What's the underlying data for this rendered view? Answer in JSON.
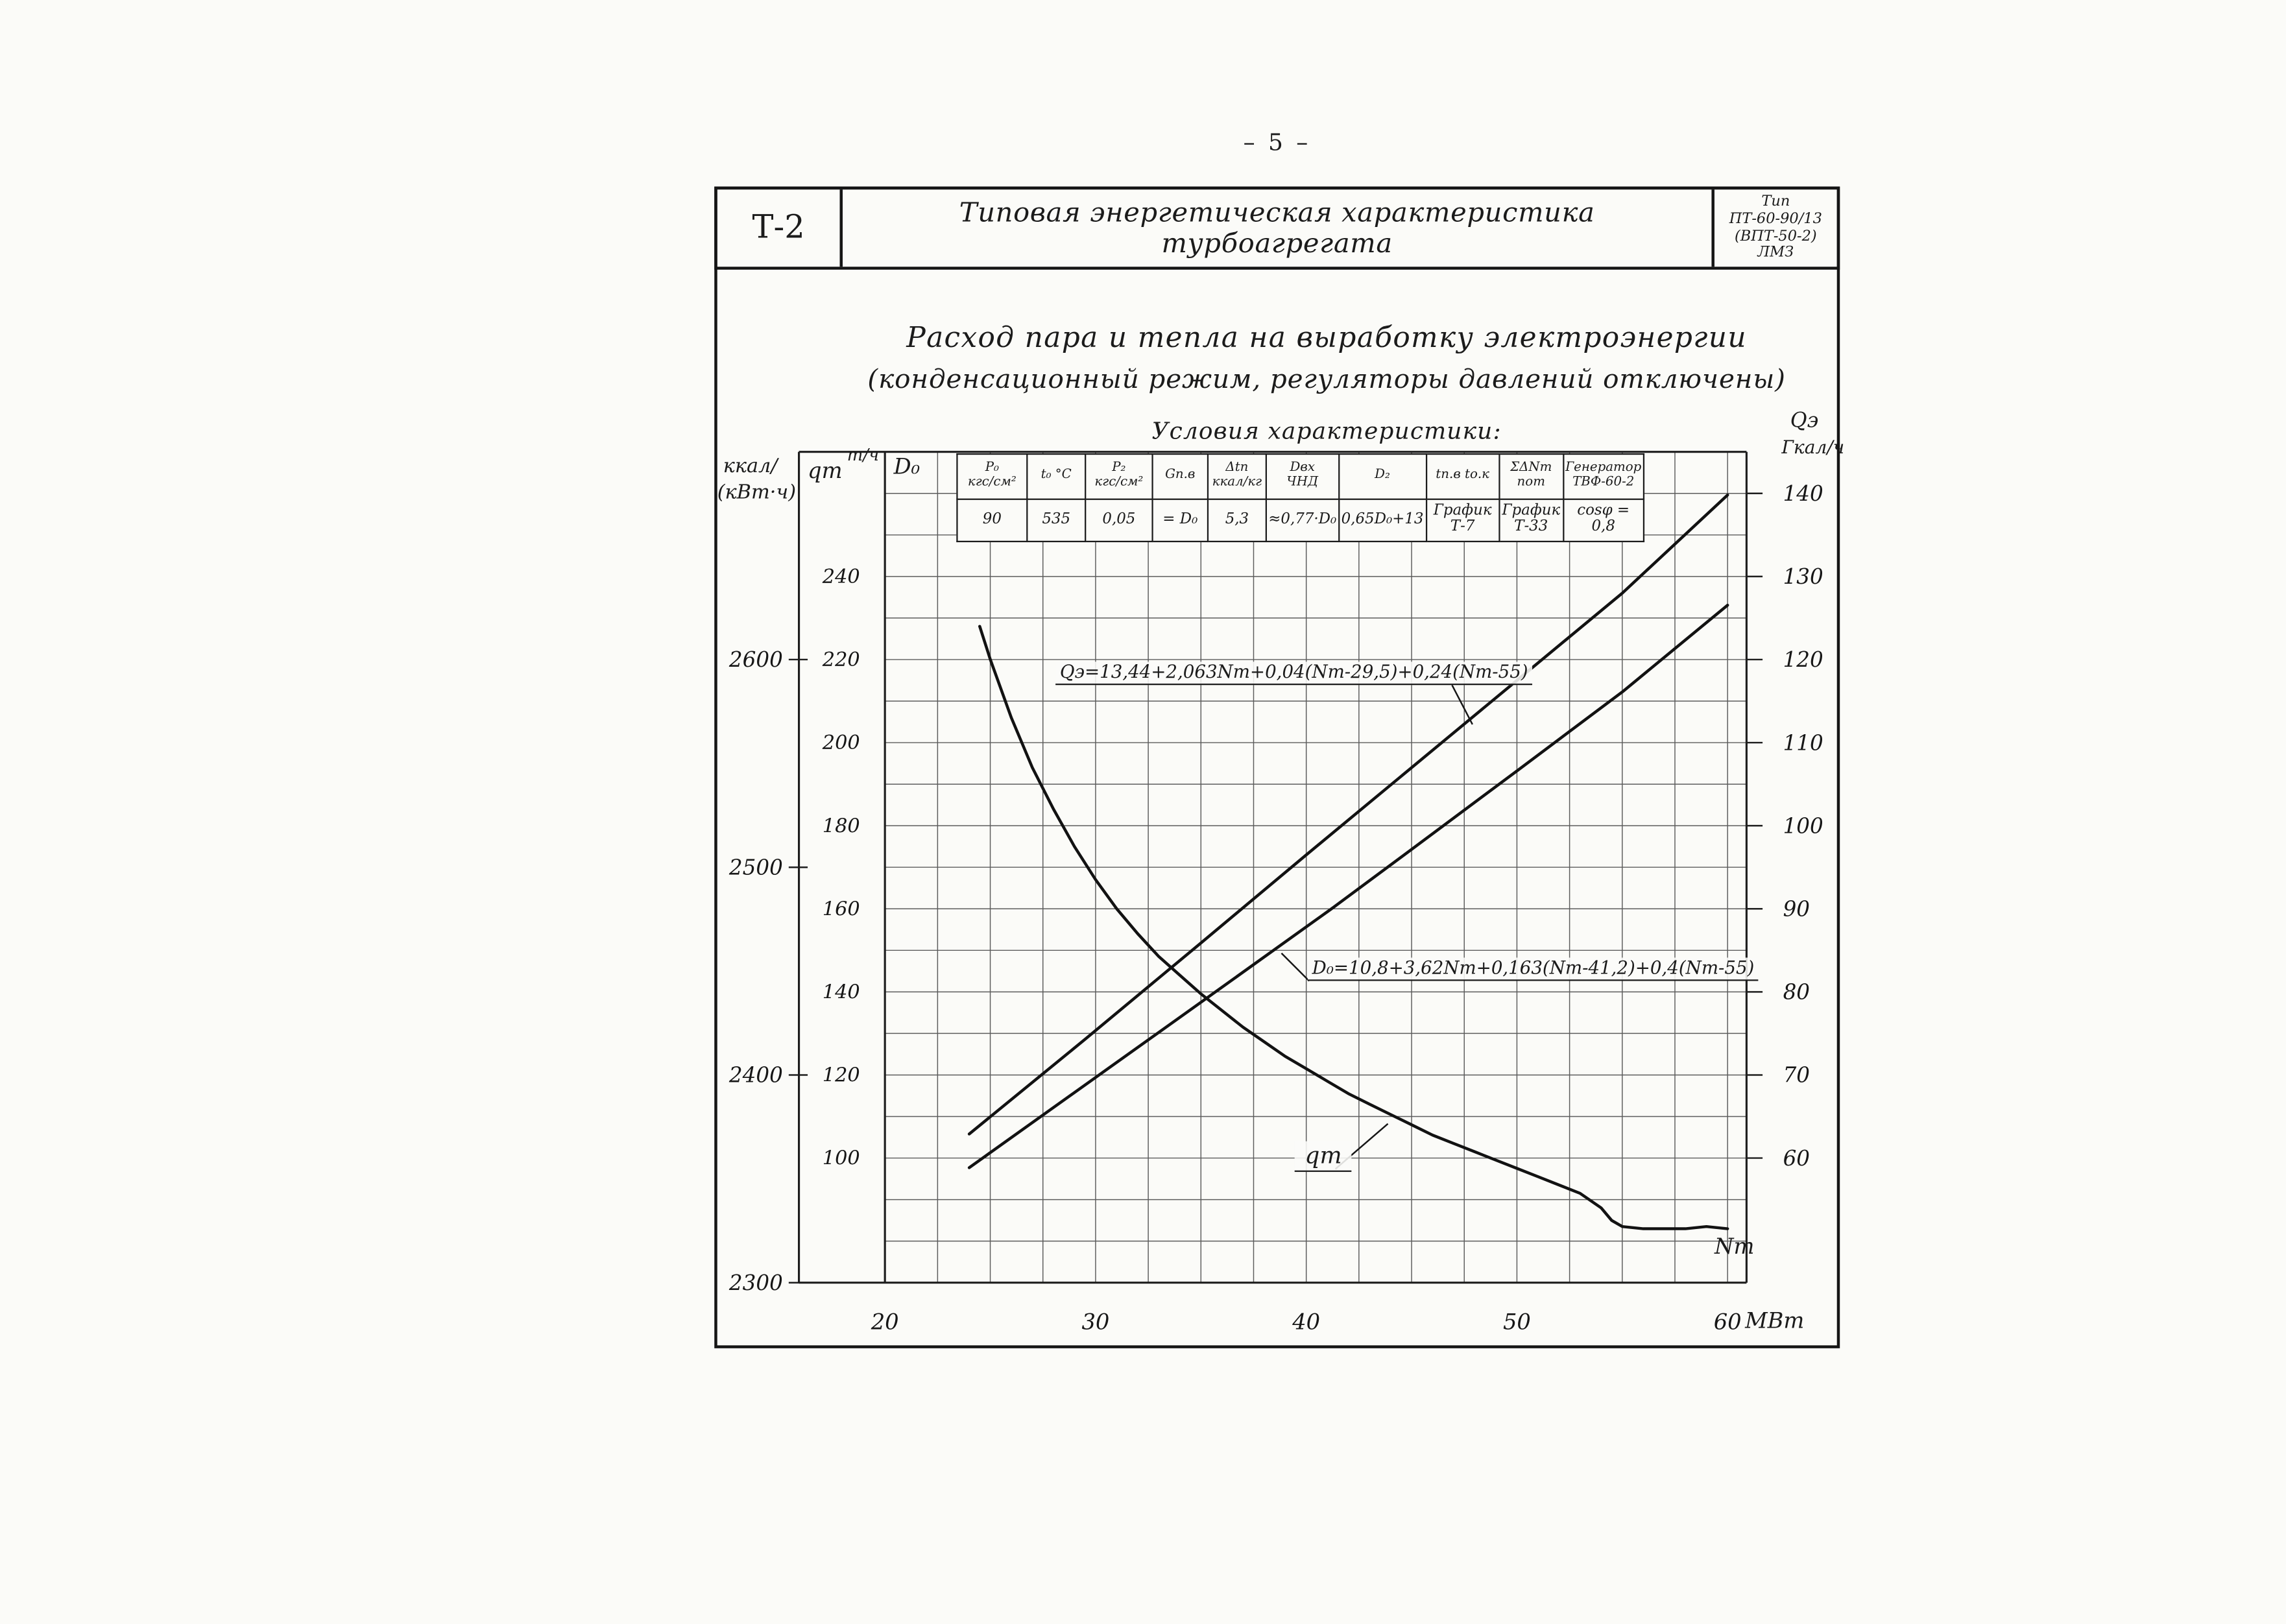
{
  "page": {
    "number": "– 5 –"
  },
  "header": {
    "code": "Т-2",
    "title": "Типовая энергетическая характеристика турбоагрегата",
    "type_lines": [
      "Тип",
      "ПТ-60-90/13",
      "(ВПТ-50-2)",
      "ЛМЗ"
    ]
  },
  "subtitle": {
    "line1": "Расход пара и тепла на выработку электроэнергии",
    "line2": "(конденсационный режим, регуляторы давлений отключены)"
  },
  "conditions": {
    "title": "Условия характеристики:",
    "columns": [
      {
        "header": "P₀\nкгс/см²",
        "value": "90"
      },
      {
        "header": "t₀ °C",
        "value": "535"
      },
      {
        "header": "P₂\nкгс/см²",
        "value": "0,05"
      },
      {
        "header": "Gп.в",
        "value": "= D₀"
      },
      {
        "header": "Δtп\nккал/кг",
        "value": "5,3"
      },
      {
        "header": "Dвх\nЧНД",
        "value": "≈0,77·D₀"
      },
      {
        "header": "D₂",
        "value": "0,65D₀+13"
      },
      {
        "header": "tп.в  tо.к",
        "value": "График\nТ-7"
      },
      {
        "header": "ΣΔNт пот",
        "value": "График\nТ-33"
      },
      {
        "header": "Генератор\nТВФ-60-2",
        "value": "cosφ = 0,8"
      }
    ]
  },
  "axes": {
    "left_outer": {
      "caption_lines": [
        "ккал/",
        "(кВт·ч)"
      ],
      "labels": [
        2600,
        2500,
        2400,
        2300
      ]
    },
    "left_inner": {
      "caption": "qт",
      "unit": "т/ч",
      "col_label": "D₀",
      "labels": [
        240,
        220,
        200,
        180,
        160,
        140,
        120,
        100
      ]
    },
    "right": {
      "caption_lines": [
        "Qэ",
        "Гкал/ч"
      ],
      "labels": [
        140,
        130,
        120,
        110,
        100,
        90,
        80,
        70,
        60
      ]
    },
    "x": {
      "labels": [
        20,
        30,
        40,
        50,
        60
      ],
      "unit": "МВт",
      "var": "Nт"
    }
  },
  "chart_data": {
    "type": "line",
    "title": "Расход пара и тепла на выработку электроэнергии (конденсационный режим)",
    "x_variable": "Nт, МВт",
    "x_range": [
      20,
      60
    ],
    "grid": true,
    "axes_info": {
      "q_left": {
        "label": "qт, D₀, т/ч",
        "range": [
          100,
          240
        ]
      },
      "heat_left": {
        "label": "ккал/(кВт·ч)",
        "range": [
          2300,
          2600
        ]
      },
      "right": {
        "label": "Qэ, Гкал/ч",
        "range": [
          60,
          140
        ]
      }
    },
    "series": [
      {
        "name": "Qэ",
        "axis": "right",
        "equation": "Qэ=13,44+2,063Nт+0,04(Nт-29,5)+0,24(Nт-55)",
        "points": [
          [
            24,
            62.9
          ],
          [
            29.5,
            74.3
          ],
          [
            35,
            85.9
          ],
          [
            40,
            96.5
          ],
          [
            45,
            107.0
          ],
          [
            50,
            117.5
          ],
          [
            55,
            128.0
          ],
          [
            60,
            139.8
          ]
        ]
      },
      {
        "name": "D₀",
        "axis": "q_left",
        "equation": "D₀=10,8+3,62Nт+0,163(Nт-41,2)+0,4(Nт-55)",
        "points": [
          [
            24,
            97.7
          ],
          [
            30,
            119.4
          ],
          [
            35,
            137.5
          ],
          [
            41.2,
            160.0
          ],
          [
            45,
            174.3
          ],
          [
            50,
            193.2
          ],
          [
            55,
            212.2
          ],
          [
            60,
            233.1
          ]
        ]
      },
      {
        "name": "qт",
        "axis": "heat_left",
        "equation": "",
        "points": [
          [
            24.5,
            2616
          ],
          [
            25,
            2600
          ],
          [
            26,
            2572
          ],
          [
            27,
            2548
          ],
          [
            28,
            2528
          ],
          [
            29,
            2510
          ],
          [
            30,
            2494
          ],
          [
            31,
            2480
          ],
          [
            32,
            2468
          ],
          [
            33,
            2457
          ],
          [
            34,
            2448
          ],
          [
            35,
            2439
          ],
          [
            36,
            2431
          ],
          [
            37,
            2423
          ],
          [
            38,
            2416
          ],
          [
            39,
            2409
          ],
          [
            40,
            2403
          ],
          [
            41,
            2397
          ],
          [
            42,
            2391
          ],
          [
            43,
            2386
          ],
          [
            44,
            2381
          ],
          [
            45,
            2376
          ],
          [
            46,
            2371
          ],
          [
            47,
            2367
          ],
          [
            48,
            2363
          ],
          [
            49,
            2359
          ],
          [
            50,
            2355
          ],
          [
            51,
            2351
          ],
          [
            52,
            2347
          ],
          [
            53,
            2343
          ],
          [
            54,
            2336
          ],
          [
            54.5,
            2330
          ],
          [
            55,
            2327
          ],
          [
            56,
            2326
          ],
          [
            57,
            2326
          ],
          [
            58,
            2326
          ],
          [
            59,
            2327
          ],
          [
            60,
            2326
          ]
        ]
      }
    ]
  }
}
